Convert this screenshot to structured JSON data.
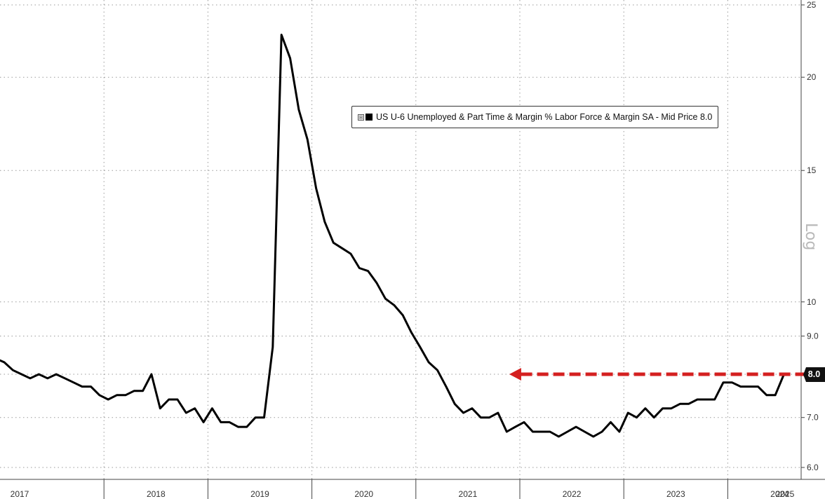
{
  "chart_data": {
    "type": "line",
    "ylabel": "Log",
    "log_scale": true,
    "ylim": [
      5.8,
      25.2
    ],
    "y_ticks": [
      "25",
      "20",
      "15",
      "10",
      "9.0",
      "8.0",
      "7.0",
      "6.0"
    ],
    "x_year_labels": [
      "2017",
      "2018",
      "2019",
      "2020",
      "2021",
      "2022",
      "2023",
      "2024",
      "2025"
    ],
    "legend": {
      "expand_symbol": "⊞",
      "text": "US U-6 Unemployed & Part Time & Margin % Labor Force & Margin SA - Mid Price 8.0",
      "placement": "top-center"
    },
    "last_value_label": "8.0",
    "series": [
      {
        "name": "US U-6 Unemployed & Part Time & Margin % Labor Force & Margin SA - Mid Price",
        "color": "#000000",
        "start": "2016-12",
        "frequency": "monthly",
        "values": [
          8.4,
          8.3,
          8.1,
          8.0,
          7.9,
          8.0,
          7.9,
          8.0,
          7.9,
          7.8,
          7.7,
          7.7,
          7.5,
          7.4,
          7.5,
          7.5,
          7.6,
          7.6,
          8.0,
          7.2,
          7.4,
          7.4,
          7.1,
          7.2,
          6.9,
          7.2,
          6.9,
          6.9,
          6.8,
          6.8,
          7.0,
          7.0,
          8.7,
          22.8,
          21.2,
          18.1,
          16.5,
          14.2,
          12.8,
          12.0,
          11.8,
          11.6,
          11.1,
          11.0,
          10.6,
          10.1,
          9.9,
          9.6,
          9.1,
          8.7,
          8.3,
          8.1,
          7.7,
          7.3,
          7.1,
          7.2,
          7.0,
          7.0,
          7.1,
          6.7,
          6.8,
          6.9,
          6.7,
          6.7,
          6.7,
          6.6,
          6.7,
          6.8,
          6.7,
          6.6,
          6.7,
          6.9,
          6.7,
          7.1,
          7.0,
          7.2,
          7.0,
          7.2,
          7.2,
          7.3,
          7.3,
          7.4,
          7.4,
          7.4,
          7.8,
          7.8,
          7.7,
          7.7,
          7.7,
          7.5,
          7.5,
          8.0
        ]
      },
      {
        "name": "",
        "type": "reference-arrow",
        "color": "#d42020",
        "from": "2025-01",
        "to": "2021-10",
        "value": 8.0
      }
    ],
    "grid": true
  }
}
